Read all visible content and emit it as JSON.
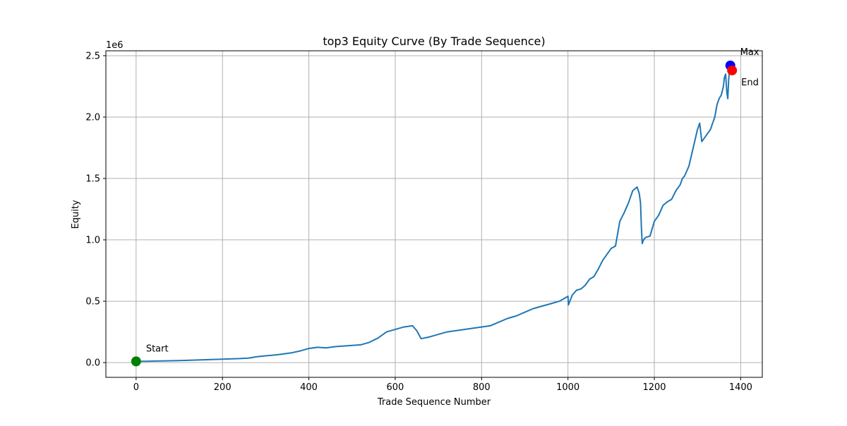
{
  "chart_data": {
    "type": "line",
    "title": "top3 Equity Curve (By Trade Sequence)",
    "xlabel": "Trade Sequence Number",
    "ylabel": "Equity",
    "y_offset_label": "1e6",
    "xlim": [
      -70,
      1450
    ],
    "ylim": [
      -120000,
      2540000
    ],
    "x_ticks": [
      0,
      200,
      400,
      600,
      800,
      1000,
      1200,
      1400
    ],
    "x_tick_labels": [
      "0",
      "200",
      "400",
      "600",
      "800",
      "1000",
      "1200",
      "1400"
    ],
    "y_ticks": [
      0,
      500000,
      1000000,
      1500000,
      2000000,
      2500000
    ],
    "y_tick_labels": [
      "0.0",
      "0.5",
      "1.0",
      "1.5",
      "2.0",
      "2.5"
    ],
    "grid": true,
    "colors": {
      "line": "#1f77b4",
      "start": "#008000",
      "max": "#0000ff",
      "end": "#ff0000",
      "grid": "#b0b0b0"
    },
    "series": [
      {
        "x": [
          0,
          20,
          50,
          100,
          150,
          200,
          240,
          260,
          280,
          300,
          330,
          360,
          380,
          400,
          420,
          440,
          460,
          480,
          500,
          520,
          540,
          560,
          580,
          600,
          620,
          640,
          650,
          660,
          680,
          700,
          720,
          740,
          760,
          780,
          800,
          820,
          840,
          860,
          880,
          900,
          920,
          940,
          960,
          980,
          1000,
          1001,
          1010,
          1020,
          1030,
          1040,
          1050,
          1060,
          1070,
          1080,
          1090,
          1100,
          1110,
          1120,
          1130,
          1140,
          1150,
          1160,
          1165,
          1168,
          1170,
          1172,
          1175,
          1180,
          1190,
          1200,
          1210,
          1220,
          1230,
          1240,
          1250,
          1260,
          1265,
          1270,
          1280,
          1290,
          1300,
          1305,
          1310,
          1320,
          1330,
          1335,
          1340,
          1345,
          1350,
          1355,
          1360,
          1362,
          1365,
          1368,
          1370,
          1372,
          1375,
          1378,
          1380
        ],
        "y": [
          10000,
          11000,
          13000,
          17000,
          22000,
          28000,
          33000,
          37000,
          48000,
          55000,
          65000,
          80000,
          95000,
          115000,
          125000,
          120000,
          130000,
          135000,
          140000,
          145000,
          165000,
          200000,
          250000,
          270000,
          290000,
          300000,
          260000,
          195000,
          210000,
          230000,
          250000,
          260000,
          270000,
          280000,
          290000,
          300000,
          330000,
          360000,
          380000,
          410000,
          440000,
          460000,
          480000,
          500000,
          540000,
          470000,
          550000,
          590000,
          600000,
          630000,
          680000,
          700000,
          760000,
          830000,
          880000,
          930000,
          950000,
          1150000,
          1220000,
          1300000,
          1400000,
          1430000,
          1380000,
          1300000,
          1100000,
          970000,
          1000000,
          1020000,
          1030000,
          1150000,
          1200000,
          1280000,
          1310000,
          1330000,
          1400000,
          1450000,
          1500000,
          1520000,
          1600000,
          1750000,
          1900000,
          1950000,
          1800000,
          1850000,
          1900000,
          1950000,
          2000000,
          2100000,
          2150000,
          2180000,
          2250000,
          2320000,
          2350000,
          2200000,
          2150000,
          2300000,
          2420000,
          2420000,
          2380000
        ]
      }
    ],
    "annotations": [
      {
        "label": "Start",
        "x": 0,
        "y": 10000,
        "color": "#008000"
      },
      {
        "label": "Max",
        "x": 1376,
        "y": 2420000,
        "color": "#0000ff"
      },
      {
        "label": "End",
        "x": 1380,
        "y": 2380000,
        "color": "#ff0000"
      }
    ]
  }
}
